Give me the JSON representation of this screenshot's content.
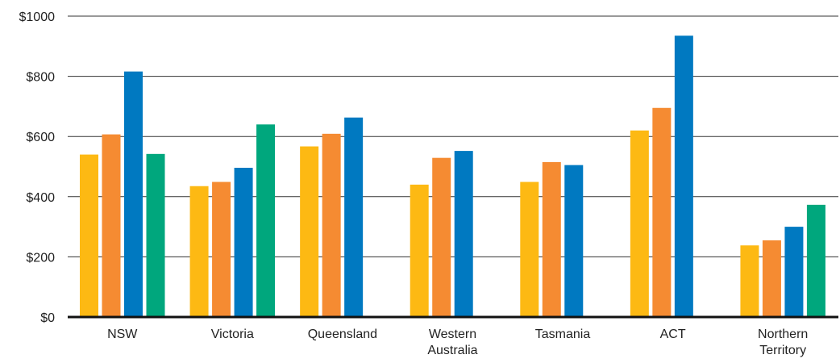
{
  "chart_data": {
    "type": "bar",
    "title": "",
    "xlabel": "",
    "ylabel": "",
    "ylim": [
      0,
      1000
    ],
    "yticks": [
      0,
      200,
      400,
      600,
      800,
      1000
    ],
    "ytick_labels": [
      "$0",
      "$200",
      "$400",
      "$600",
      "$800",
      "$1000"
    ],
    "grid": true,
    "legend": "none",
    "categories": [
      [
        "NSW"
      ],
      [
        "Victoria"
      ],
      [
        "Queensland"
      ],
      [
        "Western",
        "Australia"
      ],
      [
        "Tasmania"
      ],
      [
        "ACT"
      ],
      [
        "Northern",
        "Territory"
      ]
    ],
    "series": [
      {
        "color": "#FDB913",
        "values": [
          540,
          435,
          567,
          440,
          449,
          620,
          238
        ]
      },
      {
        "color": "#F58B32",
        "values": [
          607,
          449,
          609,
          529,
          515,
          695,
          255
        ]
      },
      {
        "color": "#0079C1",
        "values": [
          816,
          496,
          663,
          552,
          505,
          935,
          300
        ]
      },
      {
        "color": "#00A77D",
        "values": [
          542,
          640,
          null,
          null,
          null,
          null,
          373
        ]
      }
    ]
  }
}
